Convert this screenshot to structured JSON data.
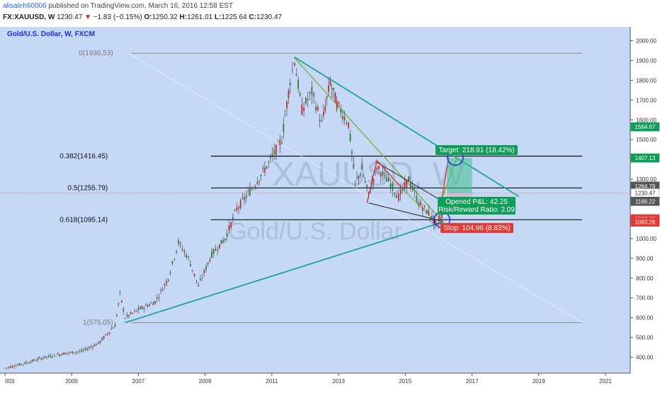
{
  "header": {
    "username": "alisaleh60006",
    "published": " published on TradingView.com, March 16, 2016 12:58 EST",
    "symbol": "FX:XAUUSD, W",
    "last": "1230.47",
    "down_arrow": "▼",
    "change": "−1.83 (−0.15%)",
    "o_key": "O:",
    "o_val": "1250.32",
    "h_key": "H:",
    "h_val": "1261.01",
    "l_key": "L:",
    "l_val": "1225.64",
    "c_key": "C:",
    "c_val": "1230.47"
  },
  "chart": {
    "series_title": "Gold/U.S. Dollar, W, FXCM",
    "watermark_symbol": "XAUUSD, W",
    "watermark_name": "Gold/U.S. Dollar",
    "colors": {
      "background": "#c5d8f5",
      "fib_line": "#111111",
      "fib_grey": "#8a8a8a",
      "channel": "#1fa39a",
      "green_line": "#7cb342",
      "red_line": "#e53935",
      "target_box": "#0f9d58",
      "stop_box": "#e53935",
      "circle": "#1a2fd6"
    }
  },
  "chart_data": {
    "type": "candlestick",
    "x_ticks": [
      "003",
      "2005",
      "2007",
      "2009",
      "2011",
      "2013",
      "2015",
      "2017",
      "2019",
      "2021"
    ],
    "y_ticks": [
      "2000.00",
      "1900.00",
      "1800.00",
      "1700.00",
      "1600.00",
      "1500.00",
      "1400.00",
      "1300.00",
      "1200.00",
      "1100.00",
      "1000.00",
      "900.00",
      "800.00",
      "700.00",
      "600.00",
      "500.00",
      "400.00"
    ],
    "y_range": [
      330,
      2050
    ],
    "price_tags": [
      {
        "text": "1564.67",
        "value": 1564.67,
        "color": "#0f9d58"
      },
      {
        "text": "1407.13",
        "value": 1407.13,
        "color": "#0f9d58"
      },
      {
        "text": "1264.79",
        "value": 1264.79,
        "color": "#555555"
      },
      {
        "text": "1230.47",
        "value": 1230.47,
        "color": "#ffffff"
      },
      {
        "text": "1188.22",
        "value": 1188.22,
        "color": "#555555"
      },
      {
        "text": "1099.85",
        "value": 1099.85,
        "color": "#e53935"
      },
      {
        "text": "1083.26",
        "value": 1083.26,
        "color": "#e53935"
      }
    ],
    "fib_levels": [
      {
        "label": "0(1936.53)",
        "value": 1936.53
      },
      {
        "label": "0.382(1416.45)",
        "value": 1416.45
      },
      {
        "label": "0.5(1255.79)",
        "value": 1255.79
      },
      {
        "label": "0.618(1095.14)",
        "value": 1095.14
      },
      {
        "label": "1(575.05)",
        "value": 575.05
      }
    ],
    "target_label": "Target: 218.91 (18.42%)",
    "pl_label": "Opened P&L: 42.25",
    "rr_label": "Risk/Reward Ratio: 2.09",
    "stop_label": "Stop: 104.96 (8.83%)",
    "price_path": [
      [
        2003.0,
        345
      ],
      [
        2003.6,
        370
      ],
      [
        2004.2,
        400
      ],
      [
        2004.8,
        420
      ],
      [
        2005.3,
        430
      ],
      [
        2005.8,
        470
      ],
      [
        2006.3,
        560
      ],
      [
        2006.45,
        720
      ],
      [
        2006.6,
        600
      ],
      [
        2007.0,
        640
      ],
      [
        2007.5,
        680
      ],
      [
        2007.9,
        800
      ],
      [
        2008.2,
        980
      ],
      [
        2008.5,
        900
      ],
      [
        2008.8,
        760
      ],
      [
        2009.2,
        920
      ],
      [
        2009.6,
        1000
      ],
      [
        2009.95,
        1150
      ],
      [
        2010.4,
        1250
      ],
      [
        2010.9,
        1380
      ],
      [
        2011.3,
        1500
      ],
      [
        2011.55,
        1800
      ],
      [
        2011.68,
        1900
      ],
      [
        2011.9,
        1650
      ],
      [
        2012.2,
        1740
      ],
      [
        2012.5,
        1580
      ],
      [
        2012.75,
        1790
      ],
      [
        2012.95,
        1680
      ],
      [
        2013.3,
        1580
      ],
      [
        2013.5,
        1280
      ],
      [
        2013.7,
        1350
      ],
      [
        2013.9,
        1220
      ],
      [
        2014.15,
        1360
      ],
      [
        2014.5,
        1290
      ],
      [
        2014.8,
        1210
      ],
      [
        2015.1,
        1300
      ],
      [
        2015.4,
        1180
      ],
      [
        2015.7,
        1130
      ],
      [
        2015.95,
        1060
      ],
      [
        2016.1,
        1120
      ],
      [
        2016.2,
        1230
      ]
    ]
  }
}
